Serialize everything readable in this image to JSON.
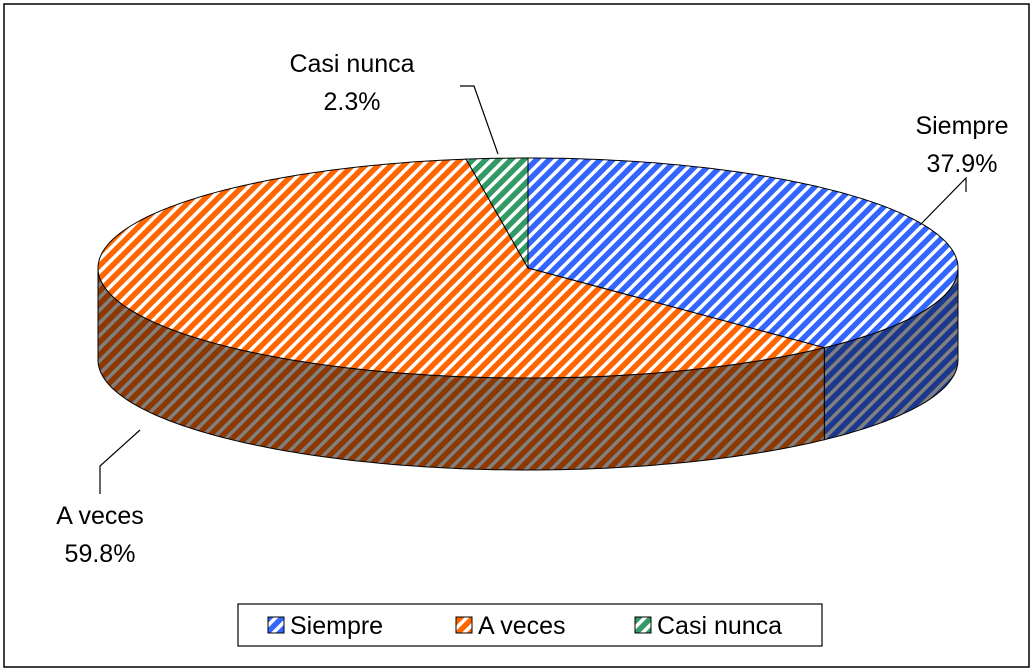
{
  "chart_data": {
    "type": "pie3d",
    "categories": [
      "Siempre",
      "A veces",
      "Casi nunca"
    ],
    "values": [
      37.9,
      59.8,
      2.3
    ],
    "value_labels": [
      "37.9%",
      "59.8%",
      "2.3%"
    ],
    "colors": [
      "#3366ff",
      "#ff6600",
      "#339966"
    ],
    "legend": "bottom"
  }
}
